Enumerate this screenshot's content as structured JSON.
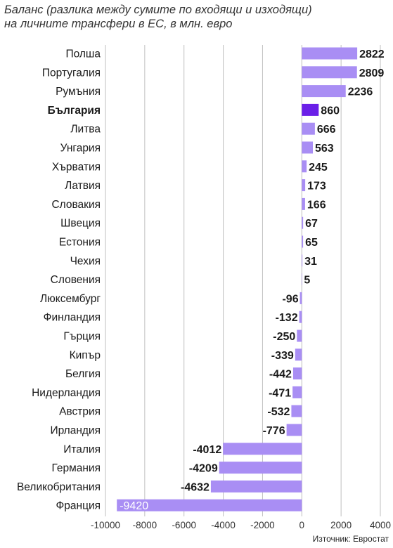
{
  "chart_data": {
    "type": "bar",
    "orientation": "horizontal",
    "title": "Баланс (разлика между сумите по входящи и изходящи)",
    "subtitle": "на личните трансфери в ЕС, в млн. евро",
    "categories": [
      "Полша",
      "Португалия",
      "Румъния",
      "България",
      "Литва",
      "Унгария",
      "Хърватия",
      "Латвия",
      "Словакия",
      "Швеция",
      "Естония",
      "Чехия",
      "Словения",
      "Люксембург",
      "Финландия",
      "Гърция",
      "Кипър",
      "Белгия",
      "Нидерландия",
      "Австрия",
      "Ирландия",
      "Италия",
      "Германия",
      "Великобритания",
      "Франция"
    ],
    "values": [
      2822,
      2809,
      2236,
      860,
      666,
      563,
      245,
      173,
      166,
      67,
      65,
      31,
      5,
      -96,
      -132,
      -250,
      -339,
      -442,
      -471,
      -532,
      -776,
      -4012,
      -4209,
      -4632,
      -9420
    ],
    "value_labels": [
      "2822",
      "2809",
      "2236",
      "860",
      "666",
      "563",
      "245",
      "173",
      "166",
      "67",
      "65",
      "31",
      "5",
      "-96",
      "-132",
      "-250",
      "-339",
      "-442",
      "-471",
      "-532",
      "-776",
      "-4012",
      "-4209",
      "-4632",
      "-9420"
    ],
    "highlight": "България",
    "xlim": [
      -10000,
      4000
    ],
    "xticks": [
      -10000,
      -8000,
      -6000,
      -4000,
      -2000,
      0,
      2000,
      4000
    ],
    "xtick_labels": [
      "-10000",
      "-8000",
      "-6000",
      "-4000",
      "-2000",
      "0",
      "2000",
      "4000"
    ],
    "grid": true,
    "colors": {
      "bar": "#a98ef4",
      "highlight": "#6a1fe8",
      "grid": "#bfbfbf"
    }
  },
  "source": "Източник: Евростат"
}
